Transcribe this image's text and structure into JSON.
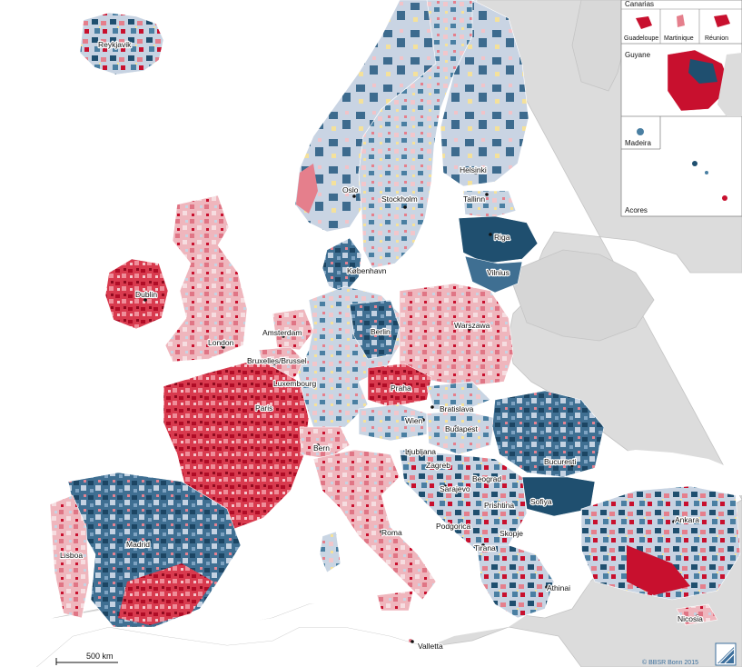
{
  "map": {
    "colors": {
      "sea": "#ffffff",
      "nonmember_land": "#dcdcdc",
      "border": "#c4c4c4",
      "dark_blue": "#1f4f6f",
      "mid_blue": "#4a7fa2",
      "pale_blue": "#c7d3e2",
      "yellow": "#f6e29a",
      "pale_pink": "#f0c4c8",
      "pink": "#e57f8c",
      "red": "#c8102e"
    },
    "cities": [
      {
        "id": "reykjavik",
        "name": "Reykjavik"
      },
      {
        "id": "oslo",
        "name": "Oslo"
      },
      {
        "id": "stockholm",
        "name": "Stockholm"
      },
      {
        "id": "helsinki",
        "name": "Helsinki"
      },
      {
        "id": "tallinn",
        "name": "Tallinn"
      },
      {
        "id": "riga",
        "name": "Riga"
      },
      {
        "id": "vilnius",
        "name": "Vilnius"
      },
      {
        "id": "kobenhavn",
        "name": "København"
      },
      {
        "id": "dublin",
        "name": "Dublin"
      },
      {
        "id": "london",
        "name": "London"
      },
      {
        "id": "amsterdam",
        "name": "Amsterdam"
      },
      {
        "id": "bruxelles",
        "name": "Bruxelles/Brussel"
      },
      {
        "id": "luxembourg",
        "name": "Luxembourg"
      },
      {
        "id": "berlin",
        "name": "Berlin"
      },
      {
        "id": "warszawa",
        "name": "Warszawa"
      },
      {
        "id": "paris",
        "name": "Paris"
      },
      {
        "id": "praha",
        "name": "Praha"
      },
      {
        "id": "bratislava",
        "name": "Bratislava"
      },
      {
        "id": "wien",
        "name": "Wien"
      },
      {
        "id": "budapest",
        "name": "Budapest"
      },
      {
        "id": "bern",
        "name": "Bern"
      },
      {
        "id": "ljubljana",
        "name": "Ljubljana"
      },
      {
        "id": "zagreb",
        "name": "Zagreb"
      },
      {
        "id": "bucuresti",
        "name": "Bucuresti"
      },
      {
        "id": "beograd",
        "name": "Beograd"
      },
      {
        "id": "sarajevo",
        "name": "Sarajevo"
      },
      {
        "id": "prishtina",
        "name": "Prishtina"
      },
      {
        "id": "sofiya",
        "name": "Sofiya"
      },
      {
        "id": "podgorica",
        "name": "Podgorica"
      },
      {
        "id": "skopje",
        "name": "Skopje"
      },
      {
        "id": "tirana",
        "name": "Tirana"
      },
      {
        "id": "madrid",
        "name": "Madrid"
      },
      {
        "id": "lisboa",
        "name": "Lisboa"
      },
      {
        "id": "roma",
        "name": "Roma"
      },
      {
        "id": "ankara",
        "name": "Ankara"
      },
      {
        "id": "athinai",
        "name": "Athinai"
      },
      {
        "id": "nicosia",
        "name": "Nicosia"
      },
      {
        "id": "valletta",
        "name": "Valletta"
      }
    ],
    "insets": {
      "canarias": "Canarias",
      "guadeloupe": "Guadeloupe",
      "martinique": "Martinique",
      "reunion": "Réunion",
      "guyane": "Guyane",
      "madeira": "Madeira",
      "acores": "Acores"
    },
    "scale_bar": "500 km",
    "credit": "© BBSR Bonn 2015"
  }
}
